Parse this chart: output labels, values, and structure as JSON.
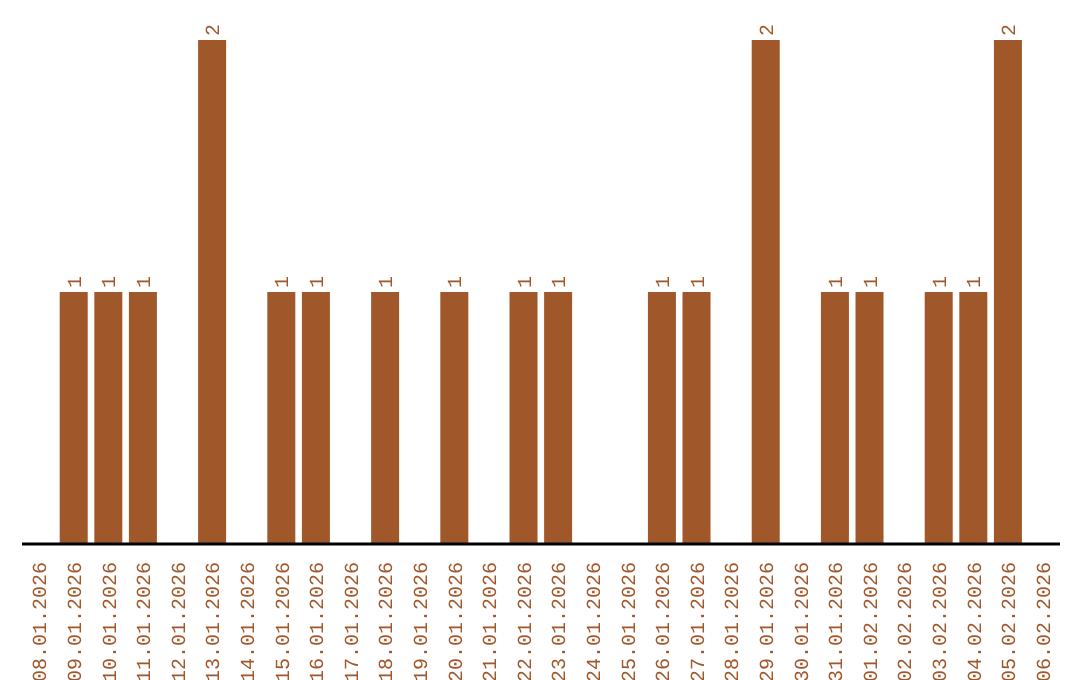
{
  "chart_data": {
    "type": "bar",
    "categories": [
      "08.01.2026",
      "09.01.2026",
      "10.01.2026",
      "11.01.2026",
      "12.01.2026",
      "13.01.2026",
      "14.01.2026",
      "15.01.2026",
      "16.01.2026",
      "17.01.2026",
      "18.01.2026",
      "19.01.2026",
      "20.01.2026",
      "21.01.2026",
      "22.01.2026",
      "23.01.2026",
      "24.01.2026",
      "25.01.2026",
      "26.01.2026",
      "27.01.2026",
      "28.01.2026",
      "29.01.2026",
      "30.01.2026",
      "31.01.2026",
      "01.02.2026",
      "02.02.2026",
      "03.02.2026",
      "04.02.2026",
      "05.02.2026",
      "06.02.2026"
    ],
    "values": [
      0,
      1,
      1,
      1,
      0,
      2,
      0,
      1,
      1,
      0,
      1,
      0,
      1,
      0,
      1,
      1,
      0,
      0,
      1,
      1,
      0,
      2,
      0,
      1,
      1,
      0,
      1,
      1,
      2,
      0
    ],
    "value_labels": [
      null,
      "1",
      "1",
      "1",
      null,
      "2",
      null,
      "1",
      "1",
      null,
      "1",
      null,
      "1",
      null,
      "1",
      "1",
      null,
      null,
      "1",
      "1",
      null,
      "2",
      null,
      "1",
      "1",
      null,
      "1",
      "1",
      "2",
      null
    ],
    "color": "#a0572a",
    "tick_labels": "x",
    "grid": false,
    "legend": false
  }
}
